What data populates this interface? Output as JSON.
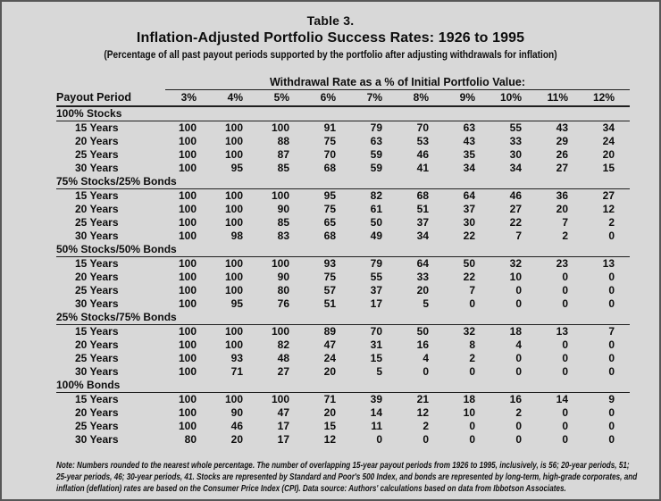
{
  "title": "Table 3.",
  "subtitle": "Inflation-Adjusted Portfolio Success Rates: 1926 to 1995",
  "caption": "(Percentage of all past payout periods supported by the portfolio after adjusting withdrawals for inflation)",
  "table": {
    "group_header": "Withdrawal Rate as a % of Initial Portfolio Value:",
    "row_header": "Payout Period",
    "columns": [
      "3%",
      "4%",
      "5%",
      "6%",
      "7%",
      "8%",
      "9%",
      "10%",
      "11%",
      "12%"
    ],
    "sections": [
      {
        "label": "100% Stocks",
        "rows": [
          {
            "label": "15 Years",
            "values": [
              100,
              100,
              100,
              91,
              79,
              70,
              63,
              55,
              43,
              34
            ]
          },
          {
            "label": "20 Years",
            "values": [
              100,
              100,
              88,
              75,
              63,
              53,
              43,
              33,
              29,
              24
            ]
          },
          {
            "label": "25 Years",
            "values": [
              100,
              100,
              87,
              70,
              59,
              46,
              35,
              30,
              26,
              20
            ]
          },
          {
            "label": "30 Years",
            "values": [
              100,
              95,
              85,
              68,
              59,
              41,
              34,
              34,
              27,
              15
            ]
          }
        ]
      },
      {
        "label": "75% Stocks/25% Bonds",
        "rows": [
          {
            "label": "15 Years",
            "values": [
              100,
              100,
              100,
              95,
              82,
              68,
              64,
              46,
              36,
              27
            ]
          },
          {
            "label": "20 Years",
            "values": [
              100,
              100,
              90,
              75,
              61,
              51,
              37,
              27,
              20,
              12
            ]
          },
          {
            "label": "25 Years",
            "values": [
              100,
              100,
              85,
              65,
              50,
              37,
              30,
              22,
              7,
              2
            ]
          },
          {
            "label": "30 Years",
            "values": [
              100,
              98,
              83,
              68,
              49,
              34,
              22,
              7,
              2,
              0
            ]
          }
        ]
      },
      {
        "label": "50% Stocks/50% Bonds",
        "rows": [
          {
            "label": "15 Years",
            "values": [
              100,
              100,
              100,
              93,
              79,
              64,
              50,
              32,
              23,
              13
            ]
          },
          {
            "label": "20 Years",
            "values": [
              100,
              100,
              90,
              75,
              55,
              33,
              22,
              10,
              0,
              0
            ]
          },
          {
            "label": "25 Years",
            "values": [
              100,
              100,
              80,
              57,
              37,
              20,
              7,
              0,
              0,
              0
            ]
          },
          {
            "label": "30 Years",
            "values": [
              100,
              95,
              76,
              51,
              17,
              5,
              0,
              0,
              0,
              0
            ]
          }
        ]
      },
      {
        "label": "25% Stocks/75% Bonds",
        "rows": [
          {
            "label": "15 Years",
            "values": [
              100,
              100,
              100,
              89,
              70,
              50,
              32,
              18,
              13,
              7
            ]
          },
          {
            "label": "20 Years",
            "values": [
              100,
              100,
              82,
              47,
              31,
              16,
              8,
              4,
              0,
              0
            ]
          },
          {
            "label": "25 Years",
            "values": [
              100,
              93,
              48,
              24,
              15,
              4,
              2,
              0,
              0,
              0
            ]
          },
          {
            "label": "30 Years",
            "values": [
              100,
              71,
              27,
              20,
              5,
              0,
              0,
              0,
              0,
              0
            ]
          }
        ]
      },
      {
        "label": "100% Bonds",
        "rows": [
          {
            "label": "15 Years",
            "values": [
              100,
              100,
              100,
              71,
              39,
              21,
              18,
              16,
              14,
              9
            ]
          },
          {
            "label": "20 Years",
            "values": [
              100,
              90,
              47,
              20,
              14,
              12,
              10,
              2,
              0,
              0
            ]
          },
          {
            "label": "25 Years",
            "values": [
              100,
              46,
              17,
              15,
              11,
              2,
              0,
              0,
              0,
              0
            ]
          },
          {
            "label": "30 Years",
            "values": [
              80,
              20,
              17,
              12,
              0,
              0,
              0,
              0,
              0,
              0
            ]
          }
        ]
      }
    ]
  },
  "note": "Note: Numbers rounded to the nearest whole percentage. The number of overlapping 15-year payout periods from 1926 to 1995, inclusively, is 56; 20-year periods, 51; 25-year periods, 46; 30-year periods, 41. Stocks are represented by Standard and Poor's 500 Index, and bonds are represented by long-term, high-grade corporates, and inflation (deflation) rates are based on the Consumer Price Index (CPI). Data source: Authors' calculations based on data from Ibbotson Associates.",
  "colors": {
    "page_background": "#d8d8d8",
    "text": "#0d0d0d",
    "rule": "#1f1f1f",
    "frame_border": "#575757"
  }
}
